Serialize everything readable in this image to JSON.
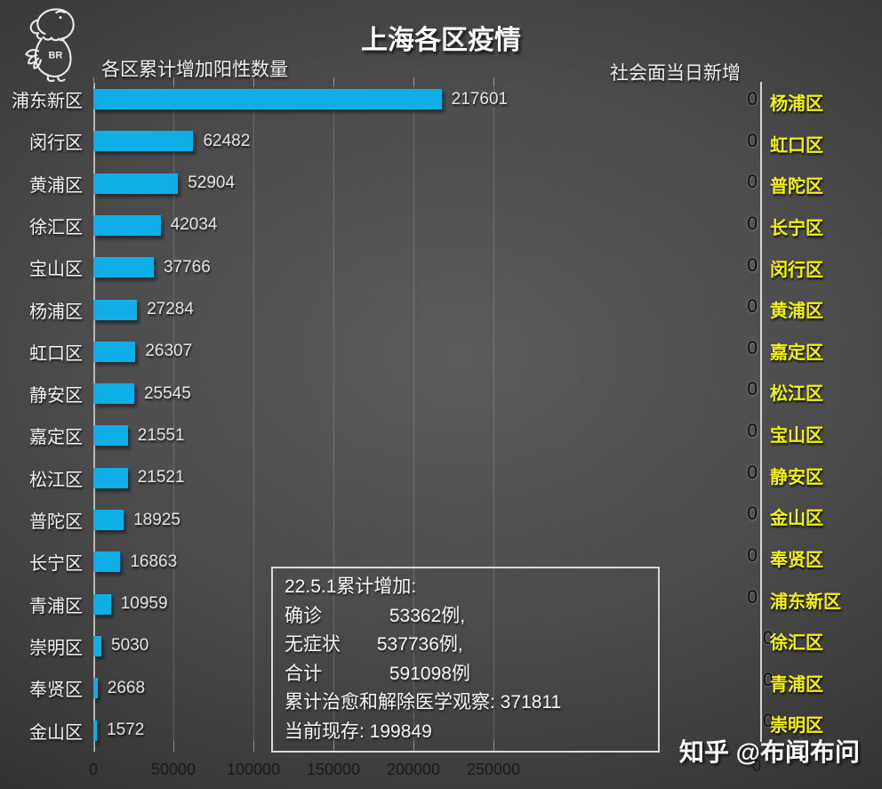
{
  "slide_title": "上海各区疫情",
  "logo": {
    "label": "BR"
  },
  "chart_data": [
    {
      "type": "bar",
      "orientation": "horizontal",
      "title": "各区累计增加阳性数量",
      "categories": [
        "浦东新区",
        "闵行区",
        "黄浦区",
        "徐汇区",
        "宝山区",
        "杨浦区",
        "虹口区",
        "静安区",
        "嘉定区",
        "松江区",
        "普陀区",
        "长宁区",
        "青浦区",
        "崇明区",
        "奉贤区",
        "金山区"
      ],
      "values": [
        217601,
        62482,
        52904,
        42034,
        37766,
        27284,
        26307,
        25545,
        21551,
        21521,
        18925,
        16863,
        10959,
        5030,
        2668,
        1572
      ],
      "value_labels": [
        "217601",
        "62482",
        "52904",
        "42034",
        "37766",
        "27284",
        "26307",
        "25545",
        "21551",
        "21521",
        "18925",
        "16863",
        "10959",
        "5030",
        "2668",
        "1572"
      ],
      "xlim": [
        0,
        250000
      ],
      "x_ticks": [
        0,
        50000,
        100000,
        150000,
        200000,
        250000
      ],
      "x_tick_labels": [
        "0",
        "50000",
        "100000",
        "150000",
        "200000",
        "250000"
      ],
      "bar_color": "#0FAEE8",
      "grid": true,
      "legend": false
    },
    {
      "type": "bar",
      "orientation": "horizontal",
      "title": "社会面当日新增",
      "categories": [
        "杨浦区",
        "虹口区",
        "普陀区",
        "长宁区",
        "闵行区",
        "黄浦区",
        "嘉定区",
        "松江区",
        "宝山区",
        "静安区",
        "金山区",
        "奉贤区",
        "浦东新区",
        "徐汇区",
        "青浦区",
        "崇明区"
      ],
      "values": [
        0,
        0,
        0,
        0,
        0,
        0,
        0,
        0,
        0,
        0,
        0,
        0,
        0,
        0,
        0,
        0
      ],
      "value_labels": [
        "0",
        "0",
        "0",
        "0",
        "0",
        "0",
        "0",
        "0",
        "0",
        "0",
        "0",
        "0",
        "0",
        "0",
        "0",
        "0"
      ],
      "x_tick_labels": [
        "0"
      ],
      "category_color": "#F2F20A",
      "value_label_color": "#0E0E0E",
      "grid": false,
      "legend": false
    }
  ],
  "info_box": {
    "lines": [
      "22.5.1累计增加:",
      "确诊             53362例,",
      "无症状       537736例,",
      "合计             591098例",
      "累计治愈和解除医学观察: 371811",
      "当前现存: 199849"
    ]
  },
  "watermark": "知乎 @布闻布问",
  "colors": {
    "bar": "#0FAEE8",
    "district_yellow": "#F2F20A",
    "text_white": "#F0F0F0",
    "axis_line": "#C8C8C8",
    "gridline_alpha": "rgba(255,255,255,0.17)",
    "dark_tick_label": "#1B1B1B"
  }
}
